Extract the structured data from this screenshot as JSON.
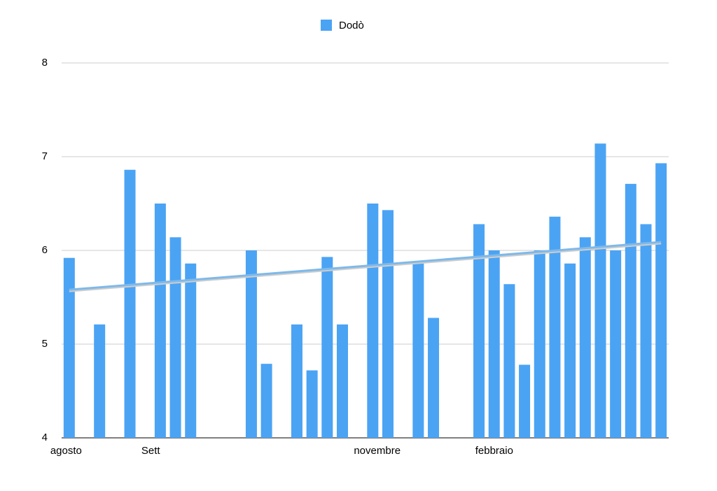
{
  "chart_data": {
    "type": "bar",
    "categories": [
      "agosto",
      null,
      null,
      null,
      null,
      null,
      "Sett",
      null,
      null,
      null,
      null,
      null,
      null,
      null,
      null,
      null,
      null,
      null,
      null,
      null,
      "novembre",
      null,
      null,
      null,
      null,
      null,
      null,
      null,
      "febbraio",
      null,
      null,
      null,
      null,
      null,
      null,
      null,
      null,
      null,
      null,
      null
    ],
    "series": [
      {
        "name": "Dodò",
        "color": "#4ba3f4",
        "values": [
          5.92,
          null,
          5.21,
          null,
          6.86,
          null,
          6.5,
          6.14,
          5.86,
          null,
          null,
          null,
          6.0,
          4.79,
          null,
          5.21,
          4.72,
          5.93,
          5.21,
          null,
          6.5,
          6.43,
          null,
          5.86,
          5.28,
          null,
          null,
          6.28,
          6.0,
          5.64,
          4.78,
          6.0,
          6.36,
          5.86,
          6.14,
          7.14,
          6.0,
          6.71,
          6.28,
          6.93
        ]
      }
    ],
    "trendline": {
      "color": "#7db9ea",
      "start": 5.58,
      "end": 6.09
    },
    "ylim": [
      4,
      8
    ],
    "yticks": [
      4,
      5,
      6,
      7,
      8
    ],
    "grid": true,
    "legend": "top"
  }
}
